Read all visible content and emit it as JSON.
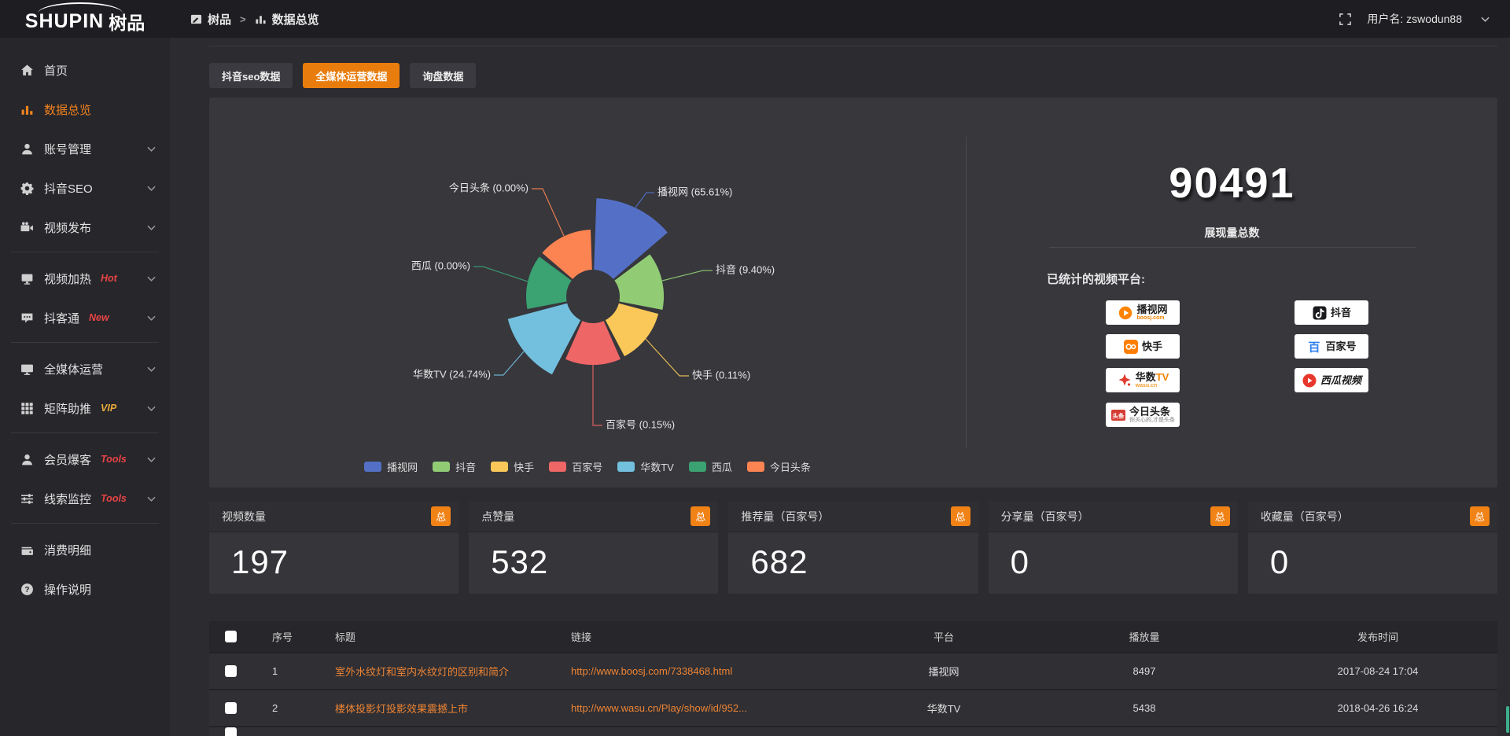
{
  "app": {
    "logo_en": "SHUPIN",
    "logo_cn": "树品"
  },
  "header": {
    "breadcrumb": [
      {
        "label": "树品"
      },
      {
        "label": "数据总览"
      }
    ],
    "separator": ">",
    "username_label": "用户名:",
    "username": "zswodun88"
  },
  "sidebar": {
    "items": [
      {
        "type": "item",
        "icon": "home",
        "label": "首页"
      },
      {
        "type": "item",
        "icon": "bar-chart",
        "label": "数据总览",
        "active": true
      },
      {
        "type": "item",
        "icon": "user",
        "label": "账号管理",
        "expandable": true
      },
      {
        "type": "item",
        "icon": "gear",
        "label": "抖音SEO",
        "expandable": true
      },
      {
        "type": "item",
        "icon": "video",
        "label": "视频发布",
        "expandable": true
      },
      {
        "type": "divider"
      },
      {
        "type": "item",
        "icon": "screen",
        "label": "视频加热",
        "badge": "Hot",
        "badge_color": "#e84444",
        "expandable": true
      },
      {
        "type": "item",
        "icon": "chat",
        "label": "抖客通",
        "badge": "New",
        "badge_color": "#e84444",
        "expandable": true
      },
      {
        "type": "divider"
      },
      {
        "type": "item",
        "icon": "monitor",
        "label": "全媒体运营",
        "expandable": true
      },
      {
        "type": "item",
        "icon": "grid",
        "label": "矩阵助推",
        "badge": "VIP",
        "badge_color": "#e8a93c",
        "expandable": true
      },
      {
        "type": "divider"
      },
      {
        "type": "item",
        "icon": "user",
        "label": "会员爆客",
        "badge": "Tools",
        "badge_color": "#e84444",
        "expandable": true
      },
      {
        "type": "item",
        "icon": "sliders",
        "label": "线索监控",
        "badge": "Tools",
        "badge_color": "#e84444",
        "expandable": true
      },
      {
        "type": "divider"
      },
      {
        "type": "item",
        "icon": "wallet",
        "label": "消费明细"
      },
      {
        "type": "item",
        "icon": "question",
        "label": "操作说明"
      }
    ]
  },
  "tabs": [
    {
      "label": "抖音seo数据",
      "active": false
    },
    {
      "label": "全媒体运营数据",
      "active": true
    },
    {
      "label": "询盘数据",
      "active": false
    }
  ],
  "chart_data": {
    "type": "pie",
    "variant": "nightingale_rose",
    "title": "",
    "unit": "%",
    "label_format": "{name} ({value}%)",
    "legend_position": "bottom",
    "slices": [
      {
        "label": "播视网",
        "value": 65.61,
        "color": "#5470c6"
      },
      {
        "label": "抖音",
        "value": 9.4,
        "color": "#91cc75"
      },
      {
        "label": "快手",
        "value": 0.11,
        "color": "#fac858"
      },
      {
        "label": "百家号",
        "value": 0.15,
        "color": "#ee6666"
      },
      {
        "label": "华数TV",
        "value": 24.74,
        "color": "#73c0de"
      },
      {
        "label": "西瓜",
        "value": 0,
        "color": "#3ba272"
      },
      {
        "label": "今日头条",
        "value": 0,
        "color": "#fc8452"
      }
    ]
  },
  "summary": {
    "total_value": "90491",
    "total_label": "展现量总数",
    "platforms_label": "已统计的视频平台:",
    "platforms_left": [
      {
        "icon": "boosj",
        "name": "播视网",
        "sub": "boosj.com",
        "sub_color": "#f08300"
      },
      {
        "icon": "kuaishou",
        "name": "快手"
      },
      {
        "icon": "wasu",
        "name": "华数",
        "accent": "TV",
        "sub": "wasu.cn",
        "sub_color": "#f0a030"
      },
      {
        "icon": "toutiao",
        "name": "今日头条",
        "sub": "你关心的,才是头条",
        "sub_color": "#aaaaaa"
      }
    ],
    "platforms_right": [
      {
        "icon": "douyin",
        "name": "抖音"
      },
      {
        "icon": "baijiahao",
        "name": "百家号"
      },
      {
        "icon": "xigua",
        "name": "西瓜视频",
        "italic": true
      }
    ]
  },
  "stat_cards": [
    {
      "title": "视频数量",
      "badge": "总",
      "value": "197"
    },
    {
      "title": "点赞量",
      "badge": "总",
      "value": "532"
    },
    {
      "title": "推荐量（百家号）",
      "badge": "总",
      "value": "682"
    },
    {
      "title": "分享量（百家号）",
      "badge": "总",
      "value": "0"
    },
    {
      "title": "收藏量（百家号）",
      "badge": "总",
      "value": "0"
    }
  ],
  "table": {
    "headers": [
      "序号",
      "标题",
      "链接",
      "平台",
      "播放量",
      "发布时间"
    ],
    "rows": [
      {
        "no": "1",
        "title": "室外水纹灯和室内水纹灯的区别和简介",
        "link": "http://www.boosj.com/7338468.html",
        "platform": "播视网",
        "plays": "8497",
        "time": "2017-08-24 17:04"
      },
      {
        "no": "2",
        "title": "楼体投影灯投影效果震撼上市",
        "link": "http://www.wasu.cn/Play/show/id/952...",
        "platform": "华数TV",
        "plays": "5438",
        "time": "2018-04-26 16:24"
      }
    ]
  },
  "colors": {
    "accent": "#e87d0e",
    "badge_orange": "#f08216",
    "link": "#ee8433",
    "badge_red": "#e84444",
    "badge_gold": "#e8a93c",
    "scrollbar": "#3fae8c"
  }
}
